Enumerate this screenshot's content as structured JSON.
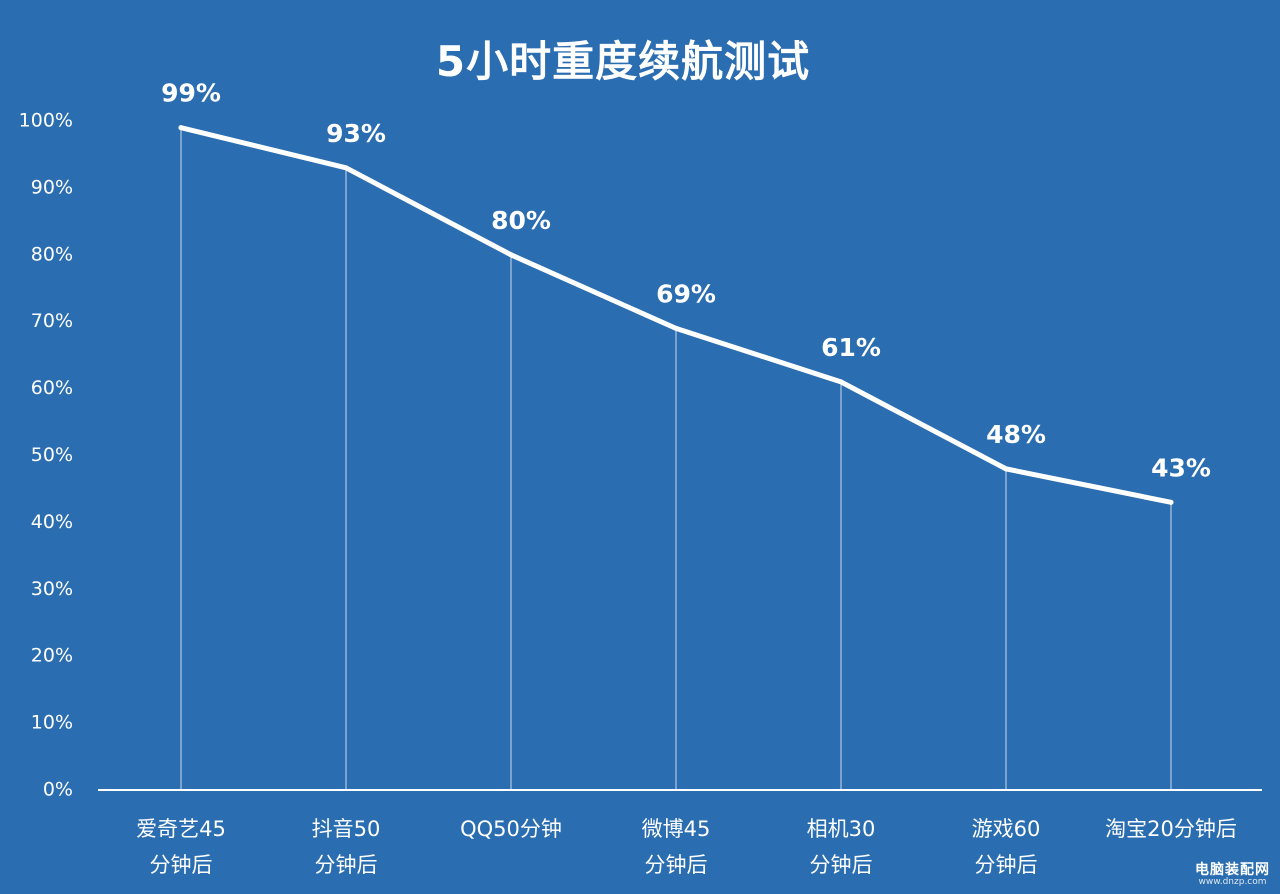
{
  "chart_data": {
    "type": "line",
    "title": "5小时重度续航测试",
    "categories": [
      [
        "爱奇艺45",
        "分钟后"
      ],
      [
        "抖音50",
        "分钟后"
      ],
      [
        "QQ50分钟"
      ],
      [
        "微博45",
        "分钟后"
      ],
      [
        "相机30",
        "分钟后"
      ],
      [
        "游戏60",
        "分钟后"
      ],
      [
        "淘宝20分钟后"
      ]
    ],
    "values": [
      99,
      93,
      80,
      69,
      61,
      48,
      43
    ],
    "data_labels": [
      "99%",
      "93%",
      "80%",
      "69%",
      "61%",
      "48%",
      "43%"
    ],
    "ylim": [
      0,
      100
    ],
    "yticks": [
      0,
      10,
      20,
      30,
      40,
      50,
      60,
      70,
      80,
      90,
      100
    ],
    "ytick_labels": [
      "0%",
      "10%",
      "20%",
      "30%",
      "40%",
      "50%",
      "60%",
      "70%",
      "80%",
      "90%",
      "100%"
    ],
    "xlabel": "",
    "ylabel": "",
    "grid": false,
    "drop_lines": true,
    "colors": {
      "background": "#2a6db0",
      "line": "#ffffff",
      "text": "#ffffff"
    }
  },
  "watermark": {
    "main": "电脑装配网",
    "sub": "www.dnzp.com"
  }
}
